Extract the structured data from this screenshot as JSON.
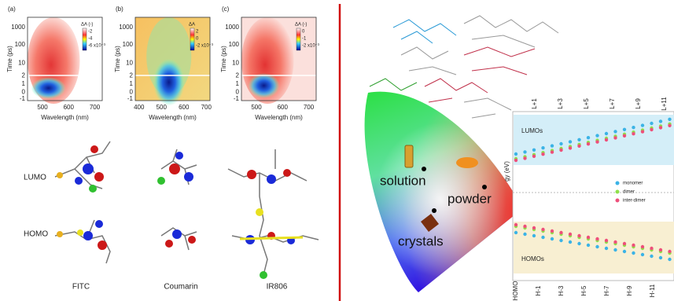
{
  "left": {
    "panels": [
      {
        "label": "(a)",
        "y_label": "Time (ps)",
        "x_label": "Wavelength (nm)",
        "yticks": [
          "1000",
          "100",
          "10",
          "2",
          "1",
          "0",
          "-1"
        ],
        "xticks": [
          "500",
          "600",
          "700"
        ],
        "colorbar": [
          "ΔA (-)",
          "-2",
          "-4",
          "-6 x10⁻³"
        ]
      },
      {
        "label": "(b)",
        "y_label": "Time (ps)",
        "x_label": "Wavelength (nm)",
        "yticks": [
          "1000",
          "100",
          "10",
          "2",
          "1",
          "0",
          "-1"
        ],
        "xticks": [
          "400",
          "500",
          "600",
          "700"
        ],
        "colorbar": [
          "ΔA",
          "2",
          "0",
          "-2 x10⁻³"
        ]
      },
      {
        "label": "(c)",
        "y_label": "Time (ps)",
        "x_label": "Wavelength (nm)",
        "yticks": [
          "1000",
          "100",
          "10",
          "2",
          "1",
          "0",
          "-1"
        ],
        "xticks": [
          "500",
          "600",
          "700"
        ],
        "colorbar": [
          "ΔA (-)",
          "0",
          "-1",
          "-2 x10⁻³"
        ]
      }
    ],
    "orbital_labels": [
      "LUMO",
      "HOMO"
    ],
    "molecules": [
      "FITC",
      "Coumarin",
      "IR806"
    ]
  },
  "right": {
    "emission_labels": [
      "solution",
      "powder",
      "crystals"
    ],
    "energy_diagram": {
      "y_label": "gy (eV)",
      "lumo_label": "LUMOs",
      "homo_label": "HOMOs",
      "lumo_ticks": [
        "L+1",
        "L+3",
        "L+5",
        "L+7",
        "L+9",
        "L+11"
      ],
      "homo_ticks": [
        "HOMO",
        "H-1",
        "H-3",
        "H-5",
        "H-7",
        "H-9",
        "H-11"
      ],
      "legend": [
        {
          "name": "monomer",
          "color": "#3bb3e6"
        },
        {
          "name": "dimer",
          "color": "#8fe04a"
        },
        {
          "name": "inter-dimer",
          "color": "#ee4f7a"
        }
      ]
    }
  }
}
